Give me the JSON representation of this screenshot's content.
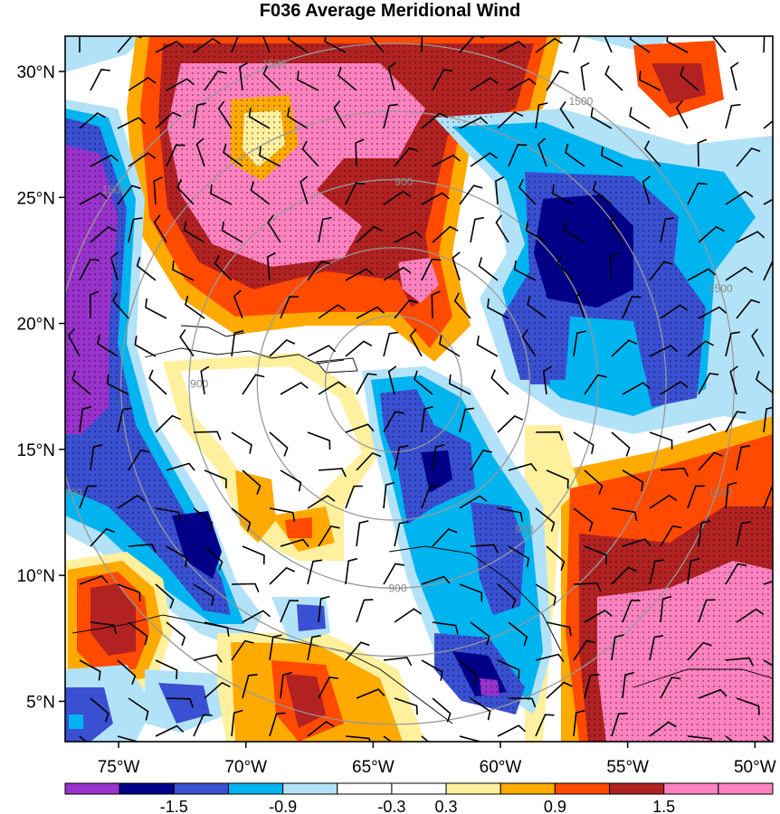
{
  "chart_data": {
    "type": "heatmap",
    "title": "F036 Average Meridional Wind",
    "xlabel": "",
    "ylabel": "",
    "x_ticks": [
      "75°W",
      "70°W",
      "65°W",
      "60°W",
      "55°W",
      "50°W"
    ],
    "x_tick_values": [
      -75,
      -70,
      -65,
      -60,
      -55,
      -50
    ],
    "y_ticks": [
      "30°N",
      "25°N",
      "20°N",
      "15°N",
      "10°N",
      "5°N"
    ],
    "y_tick_values": [
      30,
      25,
      20,
      15,
      10,
      5
    ],
    "xlim": [
      -77.1,
      -49.3
    ],
    "ylim": [
      3.4,
      31.4
    ],
    "contour_levels": [
      -1.8,
      -1.5,
      -1.2,
      -0.9,
      -0.6,
      -0.3,
      0.3,
      0.6,
      0.9,
      1.2,
      1.5,
      1.8
    ],
    "colorbar_labels": [
      "-1.5",
      "-0.9",
      "-0.3",
      "0.3",
      "0.9",
      "1.5"
    ],
    "colorbar_label_values": [
      -1.5,
      -0.9,
      -0.3,
      0.3,
      0.9,
      1.5
    ],
    "colors": [
      "#9a32cd",
      "#00008b",
      "#3a50d2",
      "#00b4f0",
      "#b2e2f8",
      "#ffffff",
      "#ffffff",
      "#fff09e",
      "#ffaa00",
      "#ff4a00",
      "#b22222",
      "#ff82c0",
      "#ff82c0"
    ],
    "stippling": "dots over regions exceeding significance",
    "distance_rings": {
      "center": [
        -64.2,
        17.6
      ],
      "radii_km": [
        300,
        600,
        900,
        1200,
        1500
      ],
      "ring_labels": [
        "900",
        "900",
        "900",
        "900",
        "1500",
        "1500",
        "1500",
        "1500",
        "1500",
        "1500"
      ]
    },
    "grid": false,
    "legend_position": "bottom"
  }
}
